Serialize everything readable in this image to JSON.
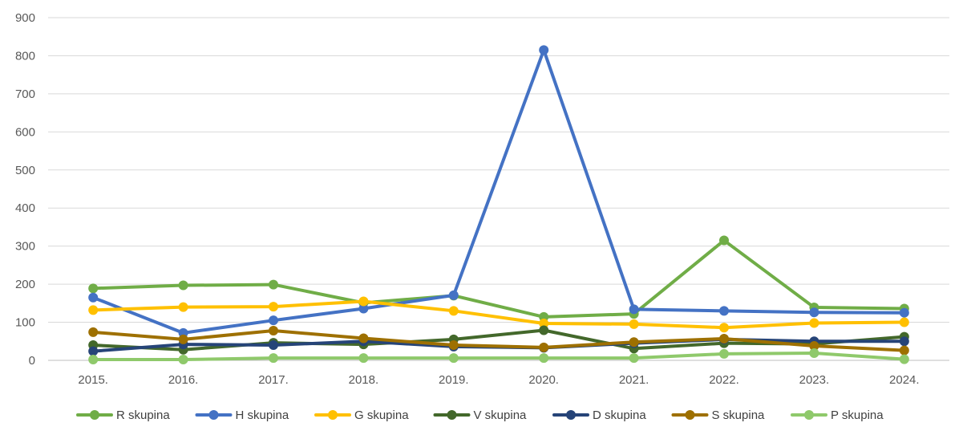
{
  "chart_data": {
    "type": "line",
    "title": "",
    "xlabel": "",
    "ylabel": "",
    "ylim": [
      0,
      900
    ],
    "yticks": [
      0,
      100,
      200,
      300,
      400,
      500,
      600,
      700,
      800,
      900
    ],
    "grid": "horizontal",
    "legend_position": "bottom",
    "categories": [
      "2015.",
      "2016.",
      "2017.",
      "2018.",
      "2019.",
      "2020.",
      "2021.",
      "2022.",
      "2023.",
      "2024."
    ],
    "series": [
      {
        "name": "R skupina",
        "color": "#70ad47",
        "values": [
          189,
          197,
          199,
          151,
          170,
          114,
          122,
          315,
          139,
          136
        ]
      },
      {
        "name": "H skupina",
        "color": "#4472c4",
        "values": [
          165,
          72,
          105,
          136,
          171,
          815,
          134,
          130,
          126,
          125
        ]
      },
      {
        "name": "G skupina",
        "color": "#ffc000",
        "values": [
          132,
          140,
          141,
          155,
          130,
          97,
          95,
          86,
          98,
          100
        ]
      },
      {
        "name": "V skupina",
        "color": "#43682b",
        "values": [
          40,
          28,
          46,
          42,
          55,
          79,
          31,
          45,
          43,
          62
        ]
      },
      {
        "name": "D skupina",
        "color": "#264478",
        "values": [
          24,
          42,
          40,
          50,
          36,
          33,
          45,
          55,
          50,
          50
        ]
      },
      {
        "name": "S skupina",
        "color": "#9e7000",
        "values": [
          74,
          55,
          78,
          58,
          40,
          34,
          48,
          57,
          38,
          26
        ]
      },
      {
        "name": "P skupina",
        "color": "#8fc96b",
        "values": [
          2,
          2,
          6,
          6,
          6,
          6,
          6,
          17,
          19,
          3
        ]
      }
    ]
  }
}
